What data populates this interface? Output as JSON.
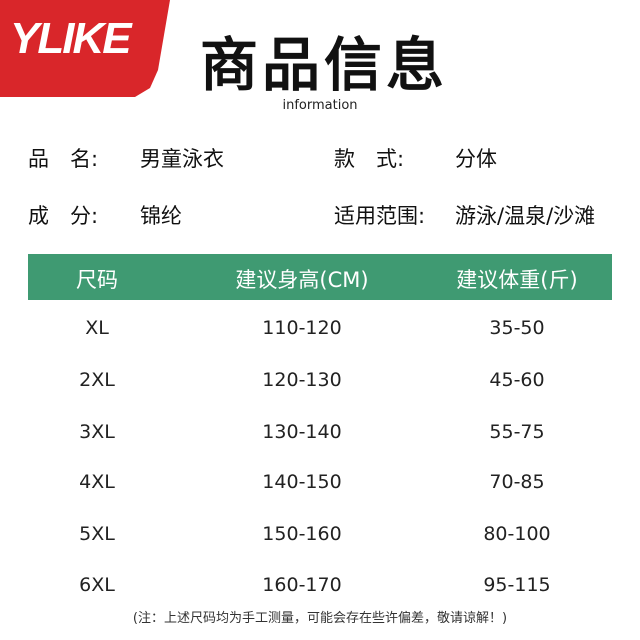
{
  "brand": {
    "logo": "YLIKE",
    "color": "#d9262a"
  },
  "title": "商品信息",
  "subtitle": "information",
  "info": [
    {
      "label": "品　名:",
      "value": "男童泳衣"
    },
    {
      "label": "款　式:",
      "value": "分体"
    },
    {
      "label": "成　分:",
      "value": "锦纶"
    },
    {
      "label": "适用范围:",
      "value": "游泳/温泉/沙滩"
    }
  ],
  "table": {
    "header_color": "#3f9a72",
    "headers": [
      "尺码",
      "建议身高(CM)",
      "建议体重(斤)"
    ],
    "rows": [
      [
        "XL",
        "110-120",
        "35-50"
      ],
      [
        "2XL",
        "120-130",
        "45-60"
      ],
      [
        "3XL",
        "130-140",
        "55-75"
      ],
      [
        "4XL",
        "140-150",
        "70-85"
      ],
      [
        "5XL",
        "150-160",
        "80-100"
      ],
      [
        "6XL",
        "160-170",
        "95-115"
      ]
    ]
  },
  "note": "(注：上述尺码均为手工测量，可能会存在些许偏差，敬请谅解！)"
}
